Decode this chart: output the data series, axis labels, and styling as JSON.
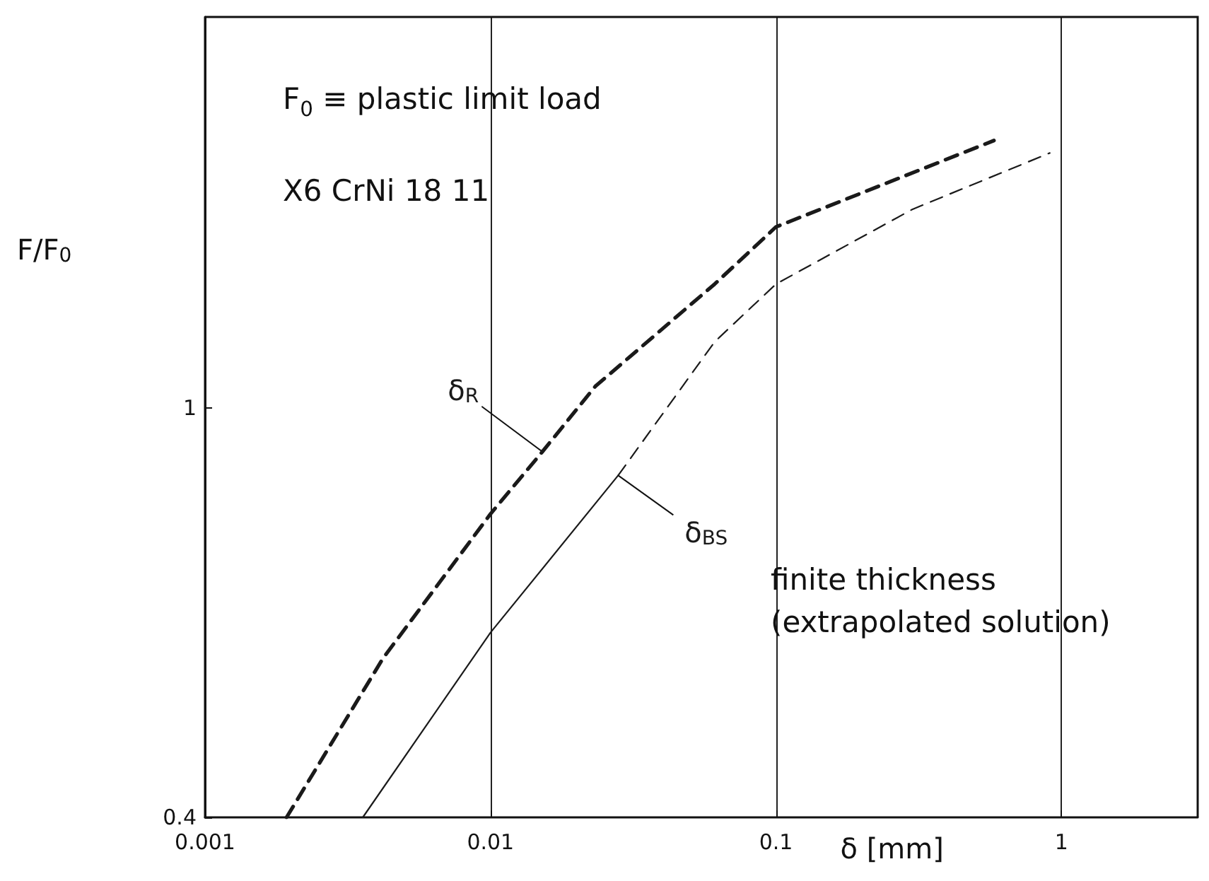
{
  "chart_data": {
    "type": "line",
    "xlabel": "δ [mm]",
    "ylabel": "F/F$_{0}$",
    "log": "xy",
    "grid": "x",
    "legend": false,
    "marker": "none",
    "xlim": [
      0.001,
      3
    ],
    "xticks": [
      0.001,
      0.01,
      0.1,
      1
    ],
    "ylim": [
      0.4,
      2.4
    ],
    "yticks": [
      0.4,
      1
    ],
    "annotations": [
      "F$_{0}$ ≡ plastic limit load",
      "X6 CrNi 18 11",
      "finite thickness (extrapolated solution)"
    ],
    "series": [
      {
        "name": "δ$_{R}$",
        "color": "#1a1a1a",
        "line_style": "dashed",
        "x": [
          0.00193,
          0.0042,
          0.01,
          0.0152,
          0.0233,
          0.061,
          0.1,
          0.58
        ],
        "values": [
          0.4,
          0.571,
          0.789,
          0.907,
          1.05,
          1.32,
          1.5,
          1.82
        ]
      },
      {
        "name": "δ$_{BS}$",
        "color": "#1a1a1a",
        "line_style": "solid",
        "x": [
          0.00357,
          0.01,
          0.028
        ],
        "values": [
          0.4,
          0.605,
          0.86
        ]
      },
      {
        "color": "#1a1a1a",
        "line_style": "dashed",
        "x": [
          0.028,
          0.061,
          0.1,
          0.3,
          0.91
        ],
        "values": [
          0.86,
          1.16,
          1.32,
          1.56,
          1.77
        ]
      }
    ]
  }
}
